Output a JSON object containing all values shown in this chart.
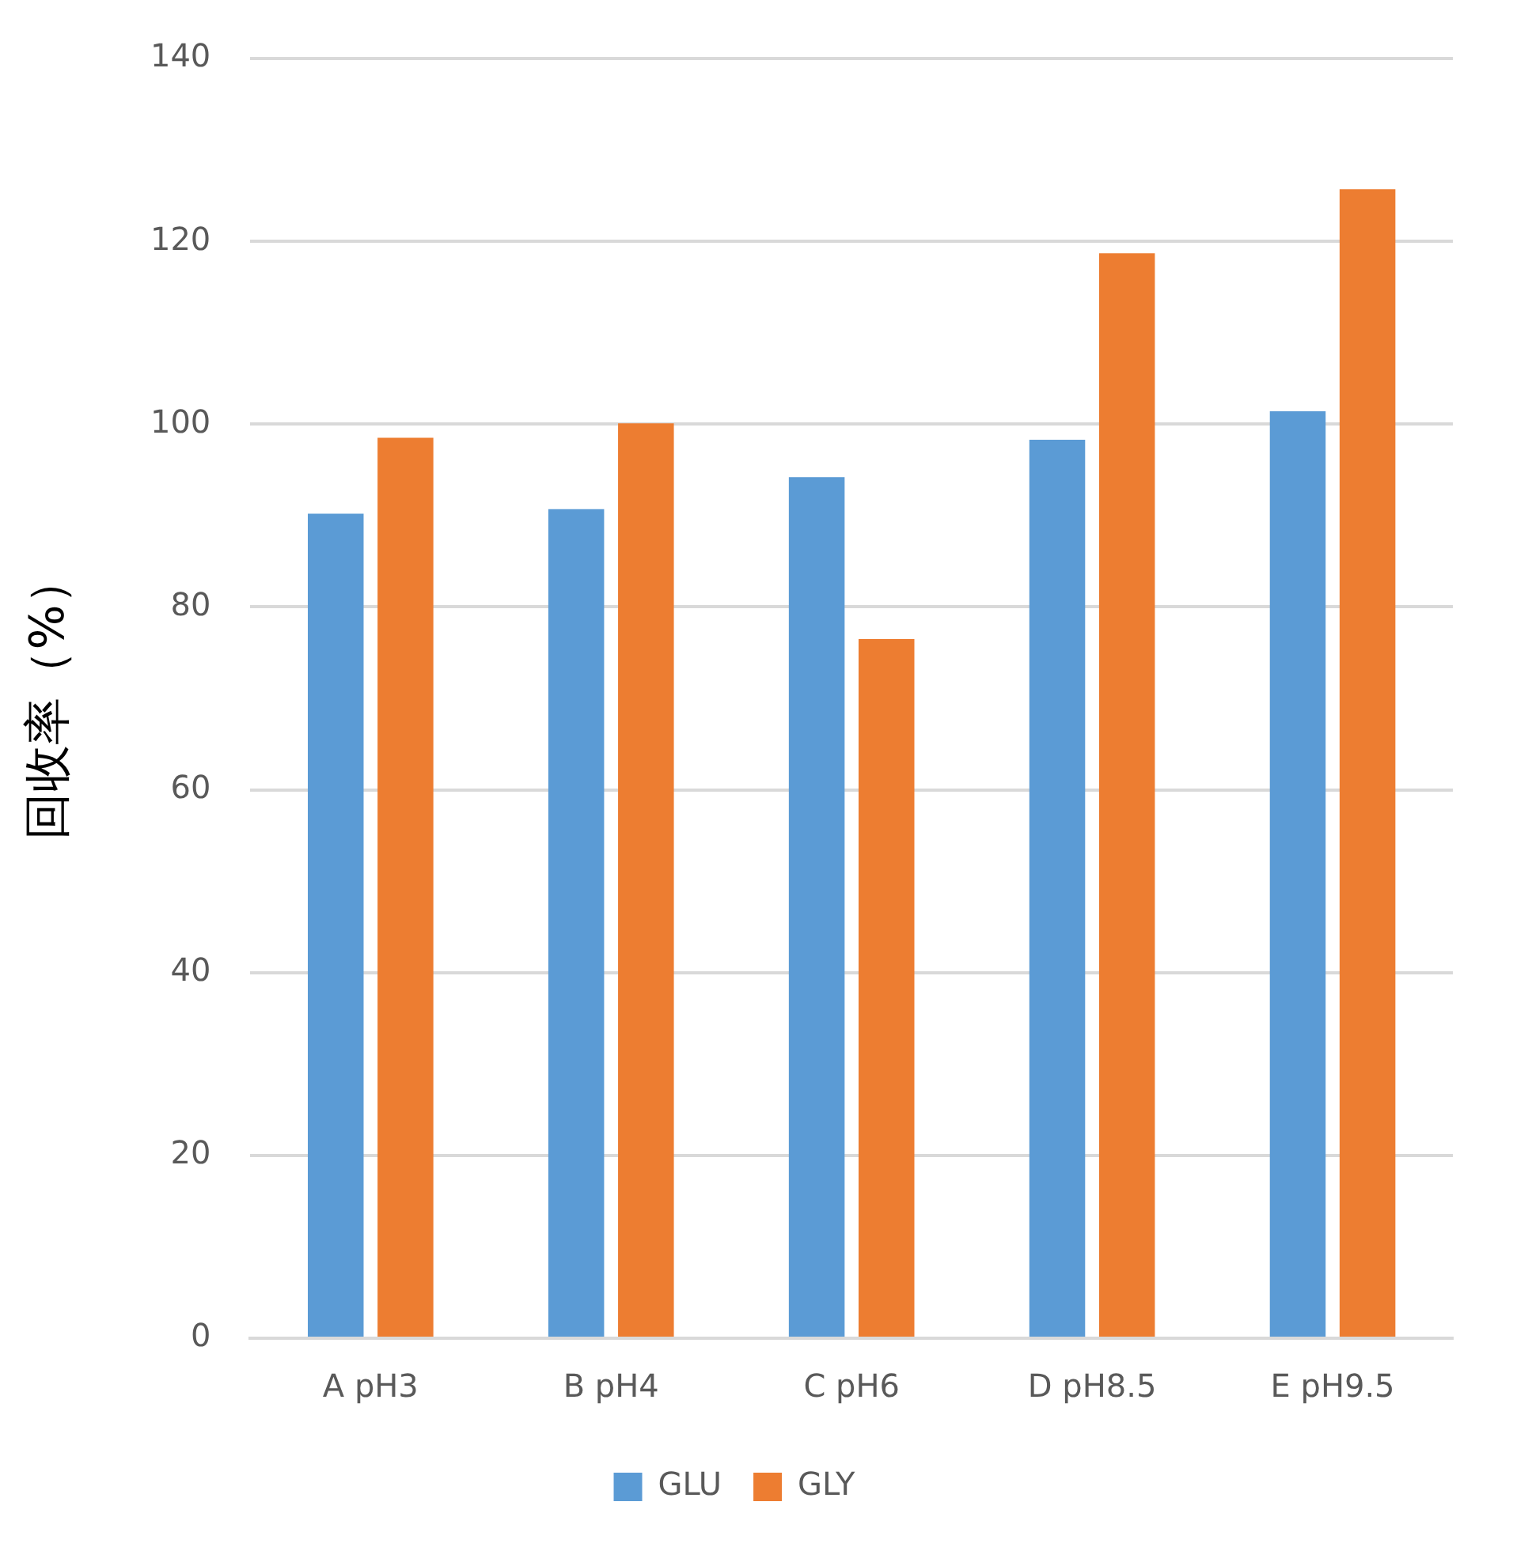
{
  "chart_data": {
    "type": "bar",
    "ylabel": "回收率（%）",
    "categories": [
      "A pH3",
      "B pH4",
      "C pH6",
      "D pH8.5",
      "E pH9.5"
    ],
    "series": [
      {
        "name": "GLU",
        "color": "#5b9bd5",
        "values": [
          90.2,
          90.7,
          94.2,
          98.3,
          101.4
        ]
      },
      {
        "name": "GLY",
        "color": "#ed7d31",
        "values": [
          98.5,
          100.1,
          76.5,
          118.7,
          125.7
        ]
      }
    ],
    "ylim": [
      0,
      140
    ],
    "yticks": [
      0,
      20,
      40,
      60,
      80,
      100,
      120,
      140
    ],
    "grid": "y",
    "legend": "bottom"
  }
}
